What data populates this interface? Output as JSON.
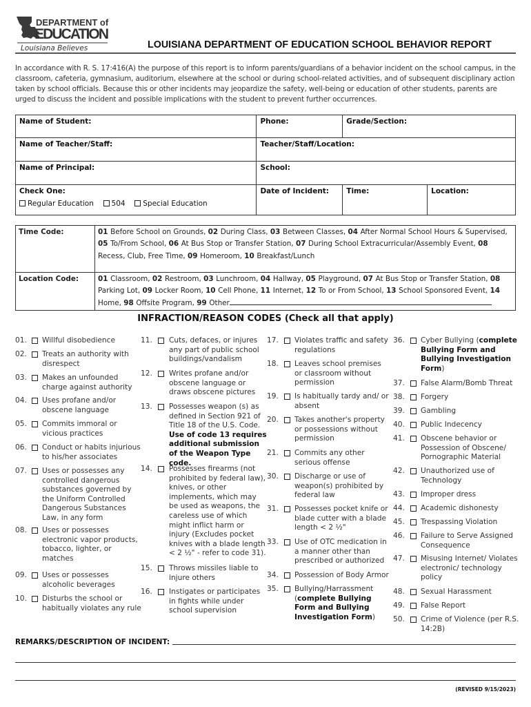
{
  "logo": {
    "line1": "DEPARTMENT of",
    "line2": "EDUCATION",
    "tagline": "Louisiana Believes"
  },
  "title": "LOUISIANA DEPARTMENT OF EDUCATION SCHOOL BEHAVIOR REPORT",
  "intro": "In accordance with R. S. 17:416(A) the purpose of this report is to inform parents/guardians of a behavior incident on the school campus, in the classroom, cafeteria, gymnasium, auditorium, elsewhere at the school or during school-related activities, and of subsequent disciplinary action taken by school officials. Because this or other incidents may jeopardize the safety, well-being or education of other students, parents are urged to discuss the incident and possible implications with the student to prevent further occurrences.",
  "form": {
    "name_of_student": "Name of Student:",
    "phone": "Phone:",
    "grade_section": "Grade/Section:",
    "name_of_teacher": "Name of Teacher/Staff:",
    "teacher_location": "Teacher/Staff/Location:",
    "name_of_principal": "Name of Principal:",
    "school": "School:",
    "check_one": "Check One:",
    "options": [
      "Regular Education",
      "504",
      "Special Education"
    ],
    "date_of_incident": "Date of Incident:",
    "time": "Time:",
    "location": "Location:"
  },
  "codes": {
    "time_label": "Time Code:",
    "time_text": [
      [
        "01",
        "Before School on Grounds, "
      ],
      [
        "02",
        "During Class, "
      ],
      [
        "03",
        "Between Classes, "
      ],
      [
        "04",
        "After Normal School Hours & Supervised, "
      ],
      [
        "05",
        "To/From School, "
      ],
      [
        "06",
        "At Bus Stop or Transfer Station, "
      ],
      [
        "07",
        "During School Extracurricular/Assembly Event, "
      ],
      [
        "08",
        "Recess, Club, Free Time, "
      ],
      [
        "09",
        "Homeroom, "
      ],
      [
        "10",
        "Breakfast/Lunch"
      ]
    ],
    "location_label": "Location Code:",
    "location_text": [
      [
        "01",
        "Classroom, "
      ],
      [
        "02",
        "Restroom, "
      ],
      [
        "03",
        "Lunchroom, "
      ],
      [
        "04",
        "Hallway, "
      ],
      [
        "05",
        "Playground, "
      ],
      [
        "07",
        "At Bus Stop or Transfer Station, "
      ],
      [
        "08",
        "Parking Lot, "
      ],
      [
        "09",
        "Locker Room, "
      ],
      [
        "10",
        "Cell Phone, "
      ],
      [
        "11",
        "Internet, "
      ],
      [
        "12",
        "To or From School, "
      ],
      [
        "13",
        "School Sponsored Event, "
      ],
      [
        "14",
        "Home, "
      ],
      [
        "98",
        "Offsite Program, "
      ],
      [
        "99",
        "Other"
      ]
    ]
  },
  "infraction_heading": "INFRACTION/REASON CODES (Check all that apply)",
  "infractions": [
    [
      {
        "n": "01.",
        "t": "Willful disobedience"
      },
      {
        "n": "02.",
        "t": "Treats an authority with disrespect"
      },
      {
        "n": "03.",
        "t": "Makes an unfounded charge against authority"
      },
      {
        "n": "04.",
        "t": "Uses profane and/or obscene language"
      },
      {
        "n": "05.",
        "t": "Commits immoral or vicious practices"
      },
      {
        "n": "06.",
        "t": "Conduct or habits injurious to his/her associates"
      },
      {
        "n": "07.",
        "t": "Uses or possesses any controlled dangerous substances governed by the Uniform Controlled Dangerous Substances Law, in any form"
      },
      {
        "n": "08.",
        "t": "Uses or possesses electronic vapor products, tobacco, lighter, or matches"
      },
      {
        "n": "09.",
        "t": "Uses or possesses alcoholic beverages"
      },
      {
        "n": "10.",
        "t": "Disturbs the school or habitually violates any rule"
      }
    ],
    [
      {
        "n": "11.",
        "t": "Cuts, defaces, or injures any part of public school buildings/vandalism"
      },
      {
        "n": "12.",
        "t": "Writes profane and/or obscene language or draws obscene pictures"
      },
      {
        "n": "13.",
        "t": "Possesses weapon (s) as defined in Section 921 of Title 18 of the U.S. Code. ",
        "b": "Use of code 13 requires additional submission of the Weapon Type code."
      },
      {
        "n": "14.",
        "t": "Possesses firearms (not prohibited by federal law), knives, or other implements, which may be used as weapons, the careless use of which might inflict harm or injury (Excludes pocket knives with a blade length < 2 ½\" - refer to code 31)."
      },
      {
        "n": "15.",
        "t": "Throws missiles liable to injure others"
      },
      {
        "n": "16.",
        "t": "Instigates or participates in fights while under school supervision"
      }
    ],
    [
      {
        "n": "17.",
        "t": "Violates traffic and safety regulations"
      },
      {
        "n": "18.",
        "t": "Leaves school premises or classroom without permission"
      },
      {
        "n": "19.",
        "t": "Is habitually tardy and/ or absent"
      },
      {
        "n": "20.",
        "t": "Takes another's property or possessions without permission"
      },
      {
        "n": "21.",
        "t": "Commits any other serious offense"
      },
      {
        "n": "30.",
        "t": "Discharge or use of weapon(s) prohibited by federal law"
      },
      {
        "n": "31.",
        "t": "Possesses pocket knife or blade cutter with a blade length < 2 ½\""
      },
      {
        "n": "33.",
        "t": "Use of OTC medication in a manner other than prescribed or authorized"
      },
      {
        "n": "34.",
        "t": "Possession of Body Armor"
      },
      {
        "n": "35.",
        "t": "Bullying/Harrassment (",
        "b": "complete Bullying Form and Bullying Investigation Form",
        "a": ")"
      }
    ],
    [
      {
        "n": "36.",
        "t": "Cyber Bullying (",
        "b": "complete Bullying Form and Bullying Investigation Form",
        "a": ")"
      },
      {
        "n": "37.",
        "t": "False Alarm/Bomb Threat"
      },
      {
        "n": "38.",
        "t": "Forgery"
      },
      {
        "n": "39.",
        "t": "Gambling"
      },
      {
        "n": "40.",
        "t": "Public Indecency"
      },
      {
        "n": "41.",
        "t": "Obscene behavior or Possession of Obscene/ Pornographic Material"
      },
      {
        "n": "42.",
        "t": "Unauthorized use of Technology"
      },
      {
        "n": "43.",
        "t": "Improper dress"
      },
      {
        "n": "44.",
        "t": "Academic dishonesty"
      },
      {
        "n": "45.",
        "t": "Trespassing Violation"
      },
      {
        "n": "46.",
        "t": "Failure to Serve Assigned Consequence"
      },
      {
        "n": "47.",
        "t": "Misusing Internet/ Violates electronic/ technology policy"
      },
      {
        "n": "48.",
        "t": "Sexual Harassment"
      },
      {
        "n": "49.",
        "t": "False Report"
      },
      {
        "n": "50.",
        "t": "Crime of Violence (per R.S. 14:2B)"
      }
    ]
  ],
  "remarks_label": "REMARKS/DESCRIPTION OF INCIDENT:",
  "revised": "(REVISED 9/15/2023)"
}
